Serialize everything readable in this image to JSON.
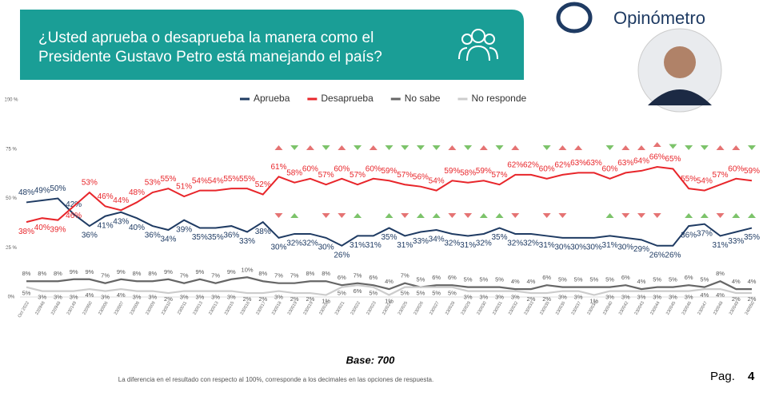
{
  "brand": "Opinómetro",
  "page_label": "Pag.",
  "page_number": "4",
  "base": "Base: 700",
  "footnote": "La diferencia en el resultado con respecto al 100%, corresponde a los decimales en las opciones de respuesta.",
  "chart_data": {
    "type": "line",
    "title": [
      "¿Usted aprueba o desaprueba la manera como el",
      "Presidente Gustavo Petro está manejando el país?"
    ],
    "categories": [
      "Oct 2022",
      "220948",
      "220948",
      "230149",
      "220950",
      "230006",
      "230007",
      "230008",
      "230009",
      "230010",
      "230011",
      "230013",
      "230013",
      "230015",
      "230016",
      "230017",
      "230018",
      "230019",
      "230019",
      "230020",
      "230021",
      "230022",
      "230023",
      "230024",
      "230025",
      "230026",
      "230027",
      "230028",
      "230029",
      "230030",
      "230031",
      "230032",
      "230033",
      "230035",
      "230036",
      "230037",
      "230038",
      "230040",
      "230042",
      "230043",
      "230044",
      "230045",
      "230046",
      "230047",
      "230048",
      "230049",
      "240050"
    ],
    "ylim": [
      0,
      100
    ],
    "yticks": [
      {
        "value": 0,
        "label": "0%"
      },
      {
        "value": 25,
        "label": "25 %"
      },
      {
        "value": 50,
        "label": "50 %"
      },
      {
        "value": 75,
        "label": "75 %"
      },
      {
        "value": 100,
        "label": "100 %"
      }
    ],
    "legend": "top",
    "series": [
      {
        "name": "Aprueba",
        "color": "#1f3b63",
        "values": [
          48,
          49,
          50,
          42,
          36,
          41,
          43,
          40,
          36,
          34,
          39,
          35,
          35,
          36,
          33,
          38,
          30,
          32,
          32,
          30,
          26,
          31,
          31,
          35,
          31,
          33,
          34,
          32,
          31,
          32,
          35,
          32,
          32,
          31,
          30,
          30,
          30,
          31,
          30,
          29,
          26,
          26,
          36,
          37,
          31,
          33,
          35
        ],
        "value_labels": [
          "48%",
          "49%",
          "50%",
          "42%",
          "36%",
          "41%",
          "43%",
          "40%",
          "36%",
          "34%",
          "39%",
          "35%",
          "35%",
          "36%",
          "33%",
          "38%",
          "30%",
          "32%",
          "32%",
          "30%",
          "26%",
          "31%",
          "31%",
          "35%",
          "31%",
          "33%",
          "34%",
          "32%",
          "31%",
          "32%",
          "35%",
          "32%",
          "32%",
          "31%",
          "30%",
          "30%",
          "30%",
          "31%",
          "30%",
          "29%",
          "26%",
          "26%",
          "36%",
          "37%",
          "31%",
          "33%",
          "35%"
        ]
      },
      {
        "name": "Desaprueba",
        "color": "#e8262b",
        "values": [
          38,
          40,
          39,
          46,
          53,
          46,
          44,
          48,
          53,
          55,
          51,
          54,
          54,
          55,
          55,
          52,
          61,
          58,
          60,
          57,
          60,
          57,
          60,
          59,
          57,
          56,
          54,
          59,
          58,
          59,
          57,
          62,
          62,
          60,
          62,
          63,
          63,
          60,
          63,
          64,
          66,
          65,
          55,
          54,
          57,
          60,
          59
        ],
        "value_labels": [
          "38%",
          "40%",
          "39%",
          "46%",
          "53%",
          "46%",
          "44%",
          "48%",
          "53%",
          "55%",
          "51%",
          "54%",
          "54%",
          "55%",
          "55%",
          "52%",
          "61%",
          "58%",
          "60%",
          "57%",
          "60%",
          "57%",
          "60%",
          "59%",
          "57%",
          "56%",
          "54%",
          "59%",
          "58%",
          "59%",
          "57%",
          "62%",
          "62%",
          "60%",
          "62%",
          "63%",
          "63%",
          "60%",
          "63%",
          "64%",
          "66%",
          "65%",
          "55%",
          "54%",
          "57%",
          "60%",
          "59%"
        ]
      },
      {
        "name": "No sabe",
        "color": "#666666",
        "values": [
          8,
          8,
          8,
          9,
          9,
          7,
          9,
          8,
          8,
          9,
          7,
          9,
          7,
          9,
          10,
          8,
          7,
          7,
          8,
          8,
          6,
          7,
          6,
          4,
          7,
          5,
          6,
          6,
          5,
          5,
          5,
          4,
          4,
          6,
          5,
          5,
          5,
          5,
          6,
          4,
          5,
          5,
          6,
          5,
          8,
          4,
          4
        ],
        "value_labels": [
          "8%",
          "8%",
          "8%",
          "9%",
          "9%",
          "7%",
          "9%",
          "8%",
          "8%",
          "9%",
          "7%",
          "9%",
          "7%",
          "9%",
          "10%",
          "8%",
          "7%",
          "7%",
          "8%",
          "8%",
          "6%",
          "7%",
          "6%",
          "4%",
          "7%",
          "5%",
          "6%",
          "6%",
          "5%",
          "5%",
          "5%",
          "4%",
          "4%",
          "6%",
          "5%",
          "5%",
          "5%",
          "5%",
          "6%",
          "4%",
          "5%",
          "5%",
          "6%",
          "5%",
          "8%",
          "4%",
          "4%"
        ]
      },
      {
        "name": "No responde",
        "color": "#cccccc",
        "values": [
          5,
          3,
          3,
          3,
          4,
          3,
          4,
          3,
          3,
          2,
          3,
          3,
          3,
          3,
          2,
          2,
          3,
          2,
          2,
          1,
          5,
          6,
          5,
          1,
          5,
          5,
          5,
          5,
          3,
          3,
          3,
          3,
          2,
          2,
          3,
          3,
          1,
          3,
          3,
          3,
          3,
          3,
          3,
          4,
          4,
          2,
          2
        ],
        "value_labels": [
          "5%",
          "3%",
          "3%",
          "3%",
          "4%",
          "3%",
          "4%",
          "3%",
          "3%",
          "2%",
          "3%",
          "3%",
          "3%",
          "3%",
          "2%",
          "2%",
          "3%",
          "2%",
          "2%",
          "1%",
          "5%",
          "6%",
          "5%",
          "1%",
          "5%",
          "5%",
          "5%",
          "5%",
          "3%",
          "3%",
          "3%",
          "3%",
          "2%",
          "2%",
          "3%",
          "3%",
          "1%",
          "3%",
          "3%",
          "3%",
          "3%",
          "3%",
          "3%",
          "4%",
          "4%",
          "2%",
          "2%"
        ]
      }
    ]
  }
}
